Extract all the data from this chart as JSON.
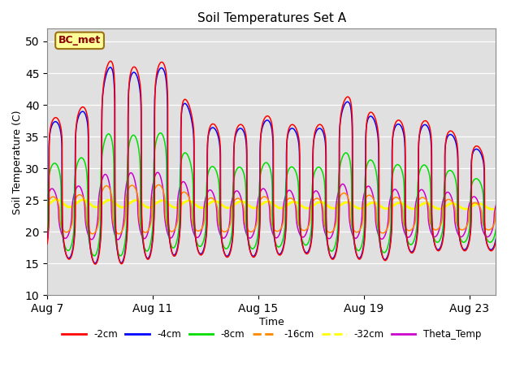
{
  "title": "Soil Temperatures Set A",
  "xlabel": "Time",
  "ylabel": "Soil Temperature (C)",
  "ylim": [
    10,
    52
  ],
  "yticks": [
    10,
    15,
    20,
    25,
    30,
    35,
    40,
    45,
    50
  ],
  "xlim_days": [
    0,
    17
  ],
  "xtick_positions": [
    0,
    4,
    8,
    12,
    16
  ],
  "xtick_labels": [
    "Aug 7",
    "Aug 11",
    "Aug 15",
    "Aug 19",
    "Aug 23"
  ],
  "annotation_text": "BC_met",
  "annotation_color": "#8B0000",
  "plot_bg_color": "#E0E0E0",
  "upper_bg_color": "#D0D0D0",
  "line_colors": {
    "2cm": "#FF0000",
    "4cm": "#0000FF",
    "8cm": "#00DD00",
    "16cm": "#FF8800",
    "32cm": "#FFFF00",
    "theta": "#CC00CC"
  },
  "legend_labels": [
    "-2cm",
    "-4cm",
    "-8cm",
    "-16cm",
    "-32cm",
    "Theta_Temp"
  ],
  "n_days": 17,
  "n_points": 3400
}
